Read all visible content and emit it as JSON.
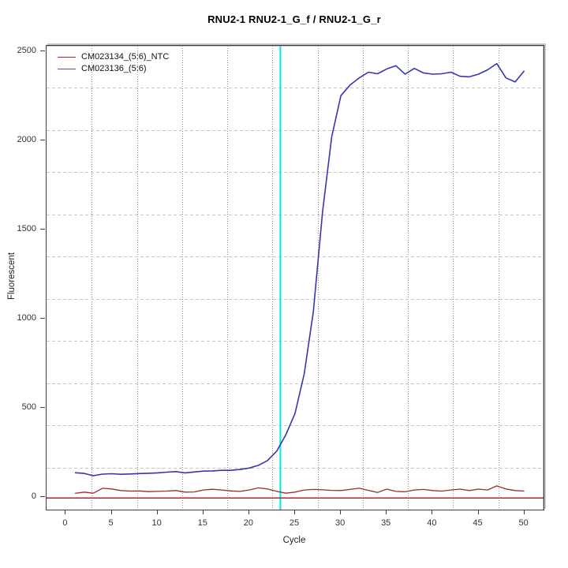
{
  "title": "RNU2-1  RNU2-1_G_f / RNU2-1_G_r",
  "axes": {
    "x_label": "Cycle",
    "y_label": "Fluorescent",
    "x_ticks": [
      0,
      5,
      10,
      15,
      20,
      25,
      30,
      35,
      40,
      45,
      50
    ],
    "y_ticks": [
      0,
      500,
      1000,
      1500,
      2000,
      2500
    ]
  },
  "legend": {
    "items": [
      {
        "label": "CM023134_(5:6)_NTC",
        "color": "#9e2c2c"
      },
      {
        "label": "CM023136_(5:6)",
        "color": "#5050b8"
      }
    ]
  },
  "colors": {
    "ntc_curve": "#9e2c2c",
    "sample_curve": "#3636b0",
    "threshold_line": "#9e2c2c",
    "ct_line": "#00e6ee",
    "grid_vertical": "#8f8f8f",
    "grid_horizontal": "#c6c6c6",
    "plot_border": "#3f3f3f",
    "tick_text": "#333333"
  },
  "chart_data": {
    "type": "line",
    "title": "RNU2-1  RNU2-1_G_f / RNU2-1_G_r",
    "xlabel": "Cycle",
    "ylabel": "Fluorescent",
    "xlim": [
      -2.1,
      52.1
    ],
    "ylim": [
      -70,
      2530
    ],
    "grid": "dotted, plot box divided 11x11",
    "legend_position": "top-left",
    "x": [
      1,
      2,
      3,
      4,
      5,
      6,
      7,
      8,
      9,
      10,
      11,
      12,
      13,
      14,
      15,
      16,
      17,
      18,
      19,
      20,
      21,
      22,
      23,
      24,
      25,
      26,
      27,
      28,
      29,
      30,
      31,
      32,
      33,
      34,
      35,
      36,
      37,
      38,
      39,
      40,
      41,
      42,
      43,
      44,
      45,
      46,
      47,
      48,
      49,
      50
    ],
    "series": [
      {
        "name": "CM023134_(5:6)_NTC",
        "color": "#9e2c2c",
        "values": [
          21,
          28,
          22,
          50,
          46,
          37,
          34,
          35,
          31,
          32,
          34,
          37,
          28,
          29,
          40,
          44,
          40,
          35,
          32,
          40,
          52,
          46,
          32,
          22,
          28,
          40,
          43,
          41,
          38,
          37,
          43,
          50,
          38,
          26,
          45,
          32,
          30,
          40,
          43,
          37,
          34,
          40,
          45,
          37,
          45,
          40,
          63,
          46,
          37,
          34
        ]
      },
      {
        "name": "CM023136_(5:6)",
        "color": "#3636b0",
        "values": [
          137,
          133,
          120,
          129,
          131,
          128,
          130,
          132,
          134,
          136,
          140,
          143,
          136,
          141,
          146,
          147,
          150,
          150,
          155,
          163,
          178,
          205,
          258,
          350,
          470,
          690,
          1040,
          1600,
          2020,
          2250,
          2310,
          2350,
          2382,
          2373,
          2400,
          2418,
          2371,
          2403,
          2378,
          2371,
          2373,
          2382,
          2359,
          2356,
          2371,
          2395,
          2430,
          2350,
          2327,
          2390
        ]
      }
    ],
    "threshold_line_y": -5,
    "ct_line_x": 23.4
  }
}
